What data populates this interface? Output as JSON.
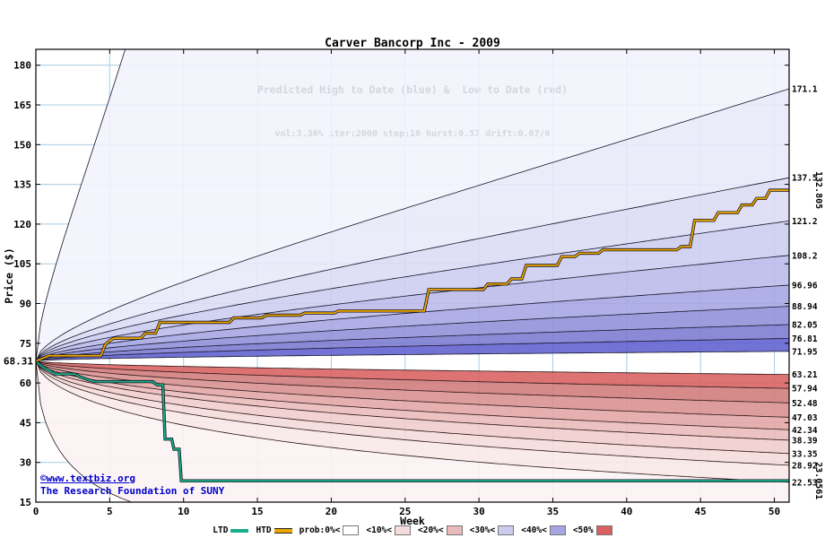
{
  "header": {
    "title": "Carver Bancorp Inc - 2009",
    "subtitle": "Predicted High to Date (blue) &  Low to Date (red)",
    "params": "vol:3.36% iter:2000 step:10 hurst:0.57 drift:0.07/0"
  },
  "watermark": {
    "line1": "©www.textbiz.org",
    "line2": "The Research Foundation of SUNY",
    "color": "#0000cc"
  },
  "legend": {
    "ltd_label": "LTD",
    "htd_label": "HTD",
    "prob_items": [
      {
        "label": "prob:0%<",
        "color": "#ffffff"
      },
      {
        "label": "<10%<",
        "color": "#f5dbdb"
      },
      {
        "label": "<20%<",
        "color": "#eab9b9"
      },
      {
        "label": "<30%<",
        "color": "#ccccf0"
      },
      {
        "label": "<40%<",
        "color": "#a5a5e2"
      },
      {
        "label": "<50%",
        "color": "#d86060"
      }
    ]
  },
  "chart_data": {
    "type": "fan-line",
    "title": "Carver Bancorp Inc - 2009",
    "xlabel": "Week",
    "ylabel": "Price ($)",
    "xlim": [
      0,
      51
    ],
    "ylim": [
      15,
      186
    ],
    "xticks": [
      0,
      5,
      10,
      15,
      20,
      25,
      30,
      35,
      40,
      45,
      50
    ],
    "yticks": [
      15,
      30,
      45,
      60,
      75,
      90,
      105,
      120,
      135,
      150,
      165,
      180
    ],
    "grid_color": "#a8cce4",
    "hurst": 0.57,
    "start": {
      "week": 0,
      "price": 68.31,
      "label": "68.31"
    },
    "high_fan": {
      "curve_color": "#15152a",
      "band_colors": [
        "#f3f3fc",
        "#e8e8f9",
        "#dbdbf5",
        "#ccccf0",
        "#b9b9ea",
        "#a5a5e2",
        "#8f8fd9",
        "#7a7ad0",
        "#6060d0"
      ],
      "curves": [
        {
          "final": 2000,
          "label": ""
        },
        {
          "final": 171.1,
          "label": "171.1"
        },
        {
          "final": 137.5,
          "label": "137.5"
        },
        {
          "final": 121.2,
          "label": "121.2"
        },
        {
          "final": 108.2,
          "label": "108.2"
        },
        {
          "final": 96.96,
          "label": "96.96"
        },
        {
          "final": 88.94,
          "label": "88.94"
        },
        {
          "final": 82.05,
          "label": "82.05"
        },
        {
          "final": 76.81,
          "label": "76.81"
        },
        {
          "final": 71.95,
          "label": "71.95"
        }
      ]
    },
    "low_fan": {
      "curve_color": "#2a1515",
      "band_colors": [
        "#fcf3f3",
        "#f9e8e8",
        "#f5dbdb",
        "#f0cccc",
        "#eab9b9",
        "#e2a5a5",
        "#d98f8f",
        "#d07a7a",
        "#d86060"
      ],
      "curves": [
        {
          "final": 0.5,
          "label": ""
        },
        {
          "final": 22.53,
          "label": "22.53"
        },
        {
          "final": 28.92,
          "label": "28.92"
        },
        {
          "final": 33.35,
          "label": "33.35"
        },
        {
          "final": 38.39,
          "label": "38.39"
        },
        {
          "final": 42.34,
          "label": "42.34"
        },
        {
          "final": 47.03,
          "label": "47.03"
        },
        {
          "final": 52.48,
          "label": "52.48"
        },
        {
          "final": 57.94,
          "label": "57.94"
        },
        {
          "final": 63.21,
          "label": "63.21"
        }
      ]
    },
    "htd": {
      "name": "HTD",
      "color": "#f0a800",
      "final_label": "132.805",
      "steps": [
        [
          0,
          68.31
        ],
        [
          0.5,
          69.4
        ],
        [
          0.9,
          70.3
        ],
        [
          4.4,
          70.3
        ],
        [
          4.7,
          74.5
        ],
        [
          5.0,
          76.0
        ],
        [
          5.3,
          76.9
        ],
        [
          7.1,
          76.9
        ],
        [
          7.4,
          78.8
        ],
        [
          8.1,
          78.8
        ],
        [
          8.4,
          82.9
        ],
        [
          13.1,
          82.9
        ],
        [
          13.4,
          84.6
        ],
        [
          15.3,
          84.6
        ],
        [
          15.6,
          85.6
        ],
        [
          17.9,
          85.6
        ],
        [
          18.2,
          86.4
        ],
        [
          20.2,
          86.4
        ],
        [
          20.5,
          87.2
        ],
        [
          26.3,
          87.2
        ],
        [
          26.6,
          95.3
        ],
        [
          30.3,
          95.3
        ],
        [
          30.6,
          97.4
        ],
        [
          31.9,
          97.4
        ],
        [
          32.2,
          99.3
        ],
        [
          32.9,
          99.3
        ],
        [
          33.2,
          104.4
        ],
        [
          35.3,
          104.4
        ],
        [
          35.6,
          107.7
        ],
        [
          36.5,
          107.7
        ],
        [
          36.8,
          109.0
        ],
        [
          38.1,
          109.0
        ],
        [
          38.4,
          110.3
        ],
        [
          43.4,
          110.3
        ],
        [
          43.7,
          111.5
        ],
        [
          44.3,
          111.5
        ],
        [
          44.6,
          121.4
        ],
        [
          45.9,
          121.4
        ],
        [
          46.2,
          124.3
        ],
        [
          47.5,
          124.3
        ],
        [
          47.8,
          127.2
        ],
        [
          48.5,
          127.2
        ],
        [
          48.8,
          129.7
        ],
        [
          49.4,
          129.7
        ],
        [
          49.7,
          132.805
        ],
        [
          51,
          132.805
        ]
      ]
    },
    "ltd": {
      "name": "LTD",
      "color": "#16b08c",
      "label_color": "#2e9e40",
      "final_label": "23.0561",
      "steps": [
        [
          0,
          68.31
        ],
        [
          0.4,
          66.2
        ],
        [
          0.9,
          64.7
        ],
        [
          1.3,
          63.4
        ],
        [
          2.6,
          63.4
        ],
        [
          3.0,
          62.3
        ],
        [
          3.5,
          61.3
        ],
        [
          4.0,
          60.5
        ],
        [
          7.9,
          60.5
        ],
        [
          8.2,
          59.3
        ],
        [
          8.6,
          59.3
        ],
        [
          8.75,
          38.8
        ],
        [
          9.2,
          38.8
        ],
        [
          9.35,
          35.0
        ],
        [
          9.7,
          35.0
        ],
        [
          9.85,
          23.0561
        ],
        [
          51,
          23.0561
        ]
      ]
    }
  }
}
